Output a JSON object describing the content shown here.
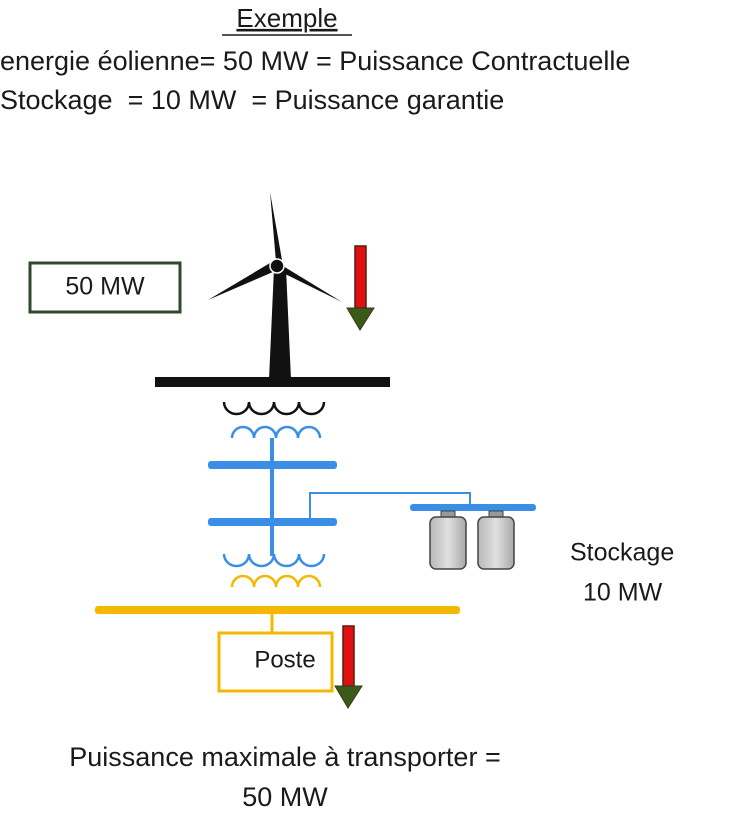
{
  "header": {
    "title": "Exemple",
    "line1": "energie éolienne= 50 MW = Puissance Contractuelle",
    "line2": "Stockage  = 10 MW  = Puissance garantie"
  },
  "diagram": {
    "turbine_label": "50 MW",
    "storage_label": "Stockage",
    "storage_power": "10 MW",
    "substation_label": "Poste"
  },
  "footer": {
    "line1": "Puissance maximale à transporter =",
    "line2": "50 MW"
  }
}
